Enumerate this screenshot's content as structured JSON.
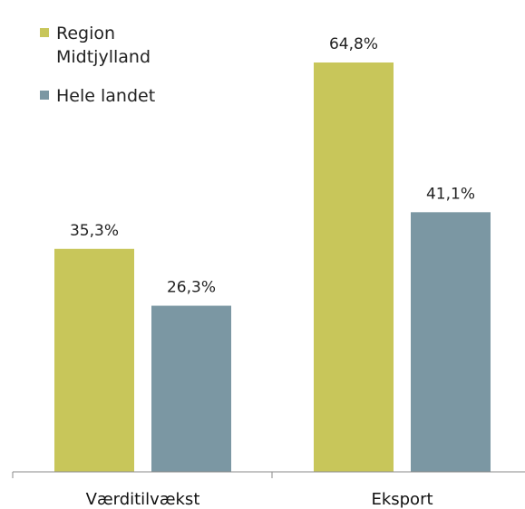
{
  "chart_data": {
    "type": "bar",
    "categories": [
      "Værditilvækst",
      "Eksport"
    ],
    "series": [
      {
        "name": "Region Midtjylland",
        "values": [
          35.3,
          64.8
        ],
        "labels": [
          "35,3%",
          "64,8%"
        ],
        "color": "#c8c65a"
      },
      {
        "name": "Hele landet",
        "values": [
          26.3,
          41.1
        ],
        "labels": [
          "26,3%",
          "41,1%"
        ],
        "color": "#7b97a3"
      }
    ],
    "title": "",
    "xlabel": "",
    "ylabel": "",
    "ylim": [
      0,
      72
    ],
    "grid": false,
    "legend_position": "top-left",
    "axis_color": "#8a8a8a"
  }
}
